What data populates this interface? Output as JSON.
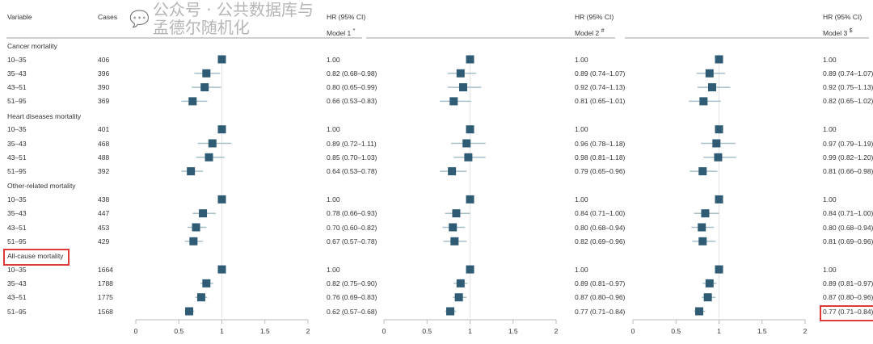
{
  "header": {
    "variable": "Variable",
    "cases": "Cases",
    "hr": "HR (95% CI)",
    "models": [
      {
        "label": "Model 1",
        "mark": "*"
      },
      {
        "label": "Model 2",
        "mark": "#"
      },
      {
        "label": "Model 3",
        "mark": "$"
      }
    ]
  },
  "colors": {
    "marker": "#2f5b74",
    "ci": "#a7bfc8",
    "ref": "#e4e4e4",
    "highlight": "#e0393a"
  },
  "watermark": "公众号 · 公共数据库与孟德尔随机化",
  "chart_data": {
    "type": "forest",
    "xlim": [
      0,
      2
    ],
    "ticks": [
      "0",
      "0.5",
      "1",
      "1.5",
      "2"
    ],
    "reference": 1,
    "groups": [
      {
        "name": "Cancer mortality",
        "rows": [
          {
            "variable": "10–35",
            "cases": "406",
            "models": [
              {
                "hr": 1,
                "lo": 1,
                "hi": 1,
                "label": "1.00"
              },
              {
                "hr": 1,
                "lo": 1,
                "hi": 1,
                "label": "1.00"
              },
              {
                "hr": 1,
                "lo": 1,
                "hi": 1,
                "label": "1.00"
              }
            ]
          },
          {
            "variable": "35–43",
            "cases": "396",
            "models": [
              {
                "hr": 0.82,
                "lo": 0.68,
                "hi": 0.98,
                "label": "0.82 (0.68–0.98)"
              },
              {
                "hr": 0.89,
                "lo": 0.74,
                "hi": 1.07,
                "label": "0.89 (0.74–1.07)"
              },
              {
                "hr": 0.89,
                "lo": 0.74,
                "hi": 1.07,
                "label": "0.89 (0.74–1.07)"
              }
            ]
          },
          {
            "variable": "43–51",
            "cases": "390",
            "models": [
              {
                "hr": 0.8,
                "lo": 0.65,
                "hi": 0.99,
                "label": "0.80 (0.65–0.99)"
              },
              {
                "hr": 0.92,
                "lo": 0.74,
                "hi": 1.13,
                "label": "0.92 (0.74–1.13)"
              },
              {
                "hr": 0.92,
                "lo": 0.75,
                "hi": 1.13,
                "label": "0.92 (0.75–1.13)"
              }
            ]
          },
          {
            "variable": "51–95",
            "cases": "369",
            "models": [
              {
                "hr": 0.66,
                "lo": 0.53,
                "hi": 0.83,
                "label": "0.66 (0.53–0.83)"
              },
              {
                "hr": 0.81,
                "lo": 0.65,
                "hi": 1.01,
                "label": "0.81 (0.65–1.01)"
              },
              {
                "hr": 0.82,
                "lo": 0.65,
                "hi": 1.02,
                "label": "0.82 (0.65–1.02)"
              }
            ]
          }
        ]
      },
      {
        "name": "Heart diseases mortality",
        "rows": [
          {
            "variable": "10–35",
            "cases": "401",
            "models": [
              {
                "hr": 1,
                "lo": 1,
                "hi": 1,
                "label": "1.00"
              },
              {
                "hr": 1,
                "lo": 1,
                "hi": 1,
                "label": "1.00"
              },
              {
                "hr": 1,
                "lo": 1,
                "hi": 1,
                "label": "1.00"
              }
            ]
          },
          {
            "variable": "35–43",
            "cases": "468",
            "models": [
              {
                "hr": 0.89,
                "lo": 0.72,
                "hi": 1.11,
                "label": "0.89 (0.72–1.11)"
              },
              {
                "hr": 0.96,
                "lo": 0.78,
                "hi": 1.18,
                "label": "0.96 (0.78–1.18)"
              },
              {
                "hr": 0.97,
                "lo": 0.79,
                "hi": 1.19,
                "label": "0.97 (0.79–1.19)"
              }
            ]
          },
          {
            "variable": "43–51",
            "cases": "488",
            "models": [
              {
                "hr": 0.85,
                "lo": 0.7,
                "hi": 1.03,
                "label": "0.85 (0.70–1.03)"
              },
              {
                "hr": 0.98,
                "lo": 0.81,
                "hi": 1.18,
                "label": "0.98 (0.81–1.18)"
              },
              {
                "hr": 0.99,
                "lo": 0.82,
                "hi": 1.2,
                "label": "0.99 (0.82–1.20)"
              }
            ]
          },
          {
            "variable": "51–95",
            "cases": "392",
            "models": [
              {
                "hr": 0.64,
                "lo": 0.53,
                "hi": 0.78,
                "label": "0.64 (0.53–0.78)"
              },
              {
                "hr": 0.79,
                "lo": 0.65,
                "hi": 0.96,
                "label": "0.79 (0.65–0.96)"
              },
              {
                "hr": 0.81,
                "lo": 0.66,
                "hi": 0.98,
                "label": "0.81 (0.66–0.98)"
              }
            ]
          }
        ]
      },
      {
        "name": "Other-related mortality",
        "rows": [
          {
            "variable": "10–35",
            "cases": "438",
            "models": [
              {
                "hr": 1,
                "lo": 1,
                "hi": 1,
                "label": "1.00"
              },
              {
                "hr": 1,
                "lo": 1,
                "hi": 1,
                "label": "1.00"
              },
              {
                "hr": 1,
                "lo": 1,
                "hi": 1,
                "label": "1.00"
              }
            ]
          },
          {
            "variable": "35–43",
            "cases": "447",
            "models": [
              {
                "hr": 0.78,
                "lo": 0.66,
                "hi": 0.93,
                "label": "0.78 (0.66–0.93)"
              },
              {
                "hr": 0.84,
                "lo": 0.71,
                "hi": 1.0,
                "label": "0.84 (0.71–1.00)"
              },
              {
                "hr": 0.84,
                "lo": 0.71,
                "hi": 1.0,
                "label": "0.84 (0.71–1.00)"
              }
            ]
          },
          {
            "variable": "43–51",
            "cases": "453",
            "models": [
              {
                "hr": 0.7,
                "lo": 0.6,
                "hi": 0.82,
                "label": "0.70 (0.60–0.82)"
              },
              {
                "hr": 0.8,
                "lo": 0.68,
                "hi": 0.94,
                "label": "0.80 (0.68–0.94)"
              },
              {
                "hr": 0.8,
                "lo": 0.68,
                "hi": 0.94,
                "label": "0.80 (0.68–0.94)"
              }
            ]
          },
          {
            "variable": "51–95",
            "cases": "429",
            "models": [
              {
                "hr": 0.67,
                "lo": 0.57,
                "hi": 0.78,
                "label": "0.67 (0.57–0.78)"
              },
              {
                "hr": 0.82,
                "lo": 0.69,
                "hi": 0.96,
                "label": "0.82 (0.69–0.96)"
              },
              {
                "hr": 0.81,
                "lo": 0.69,
                "hi": 0.96,
                "label": "0.81 (0.69–0.96)"
              }
            ]
          }
        ]
      },
      {
        "name": "All-cause mortality",
        "highlighted": true,
        "rows": [
          {
            "variable": "10–35",
            "cases": "1664",
            "models": [
              {
                "hr": 1,
                "lo": 1,
                "hi": 1,
                "label": "1.00"
              },
              {
                "hr": 1,
                "lo": 1,
                "hi": 1,
                "label": "1.00"
              },
              {
                "hr": 1,
                "lo": 1,
                "hi": 1,
                "label": "1.00"
              }
            ]
          },
          {
            "variable": "35–43",
            "cases": "1788",
            "models": [
              {
                "hr": 0.82,
                "lo": 0.75,
                "hi": 0.9,
                "label": "0.82 (0.75–0.90)"
              },
              {
                "hr": 0.89,
                "lo": 0.81,
                "hi": 0.97,
                "label": "0.89 (0.81–0.97)"
              },
              {
                "hr": 0.89,
                "lo": 0.81,
                "hi": 0.97,
                "label": "0.89 (0.81–0.97)"
              }
            ]
          },
          {
            "variable": "43–51",
            "cases": "1775",
            "models": [
              {
                "hr": 0.76,
                "lo": 0.69,
                "hi": 0.83,
                "label": "0.76 (0.69–0.83)"
              },
              {
                "hr": 0.87,
                "lo": 0.8,
                "hi": 0.96,
                "label": "0.87 (0.80–0.96)"
              },
              {
                "hr": 0.87,
                "lo": 0.8,
                "hi": 0.96,
                "label": "0.87 (0.80–0.96)"
              }
            ]
          },
          {
            "variable": "51–95",
            "cases": "1568",
            "models": [
              {
                "hr": 0.62,
                "lo": 0.57,
                "hi": 0.68,
                "label": "0.62 (0.57–0.68)"
              },
              {
                "hr": 0.77,
                "lo": 0.71,
                "hi": 0.84,
                "label": "0.77 (0.71–0.84)"
              },
              {
                "hr": 0.77,
                "lo": 0.71,
                "hi": 0.84,
                "label": "0.77 (0.71–0.84)",
                "highlighted": true
              }
            ]
          }
        ]
      }
    ]
  }
}
